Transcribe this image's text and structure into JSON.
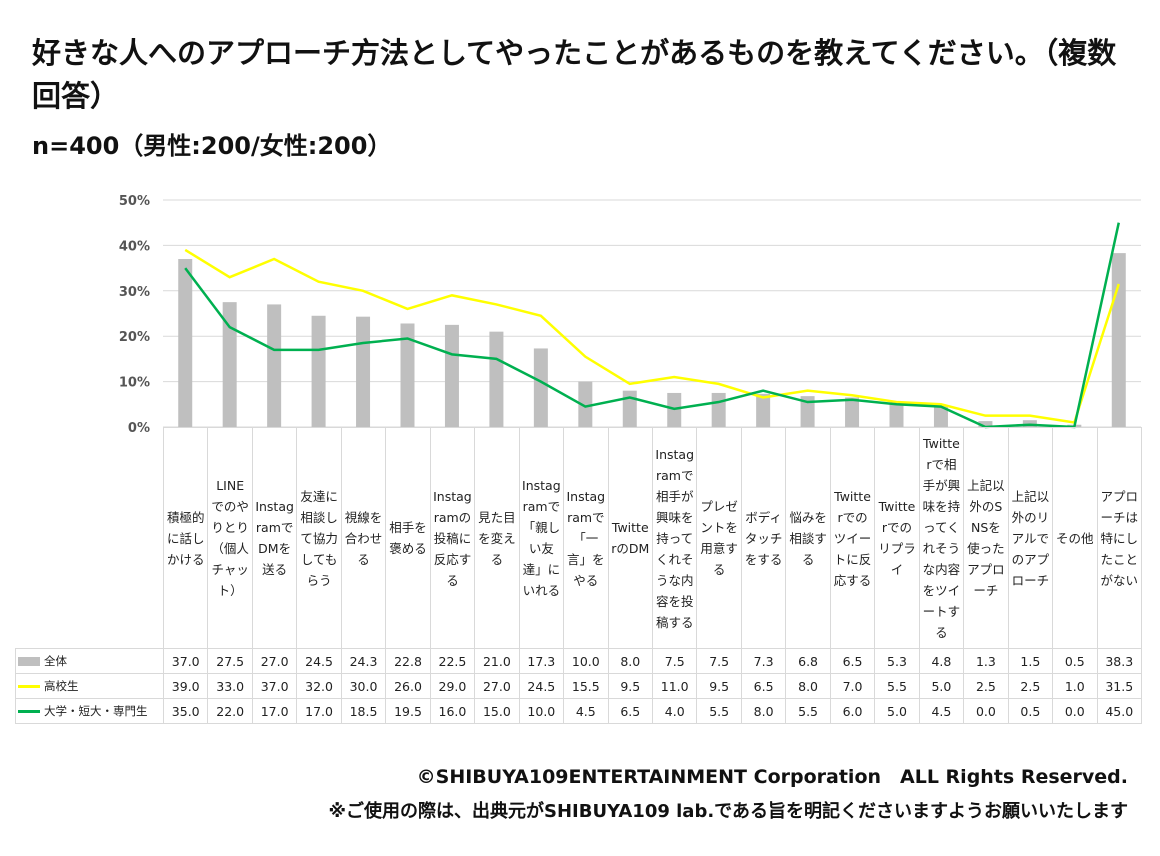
{
  "title": "好きな人へのアプローチ方法としてやったことがあるものを教えてください。（複数回答）",
  "subtitle": "n=400（男性:200/女性:200）",
  "footer": {
    "copyright": "©SHIBUYA109ENTERTAINMENT Corporation　ALL Rights Reserved.",
    "note": "※ご使用の際は、出典元がSHIBUYA109 lab.である旨を明記くださいますようお願いいたします"
  },
  "chart_data": {
    "type": "bar+line",
    "title": "好きな人へのアプローチ方法としてやったことがあるものを教えてください。（複数回答）",
    "ylim": [
      0,
      50
    ],
    "yticks": [
      "0%",
      "10%",
      "20%",
      "30%",
      "40%",
      "50%"
    ],
    "grid": true,
    "legend": "table-left",
    "categories": [
      "積極的に話しかける",
      "LINEでのやりとり（個人チャット）",
      "InstagramでDMを送る",
      "友達に相談して協力してもらう",
      "視線を合わせる",
      "相手を褒める",
      "Instagramの投稿に反応する",
      "見た目を変える",
      "Instagramで「親しい友達」にいれる",
      "Instagramで「一言」をやる",
      "TwitterのDM",
      "Instagramで相手が興味を持ってくれそうな内容を投稿する",
      "プレゼントを用意する",
      "ボディタッチをする",
      "悩みを相談する",
      "Twitterでのツイートに反応する",
      "Twitterでのリプライ",
      "Twitterで相手が興味を持ってくれそうな内容をツイートする",
      "上記以外のSNSを使ったアプローチ",
      "上記以外のリアルでのアプローチ",
      "その他",
      "アプローチは特にしたことがない"
    ],
    "series": [
      {
        "name": "全体",
        "type": "bar",
        "color": "#bfbfbf",
        "values": [
          37.0,
          27.5,
          27.0,
          24.5,
          24.3,
          22.8,
          22.5,
          21.0,
          17.3,
          10.0,
          8.0,
          7.5,
          7.5,
          7.3,
          6.8,
          6.5,
          5.3,
          4.8,
          1.3,
          1.5,
          0.5,
          38.3
        ]
      },
      {
        "name": "高校生",
        "type": "line",
        "color": "#ffff00",
        "values": [
          39.0,
          33.0,
          37.0,
          32.0,
          30.0,
          26.0,
          29.0,
          27.0,
          24.5,
          15.5,
          9.5,
          11.0,
          9.5,
          6.5,
          8.0,
          7.0,
          5.5,
          5.0,
          2.5,
          2.5,
          1.0,
          31.5
        ]
      },
      {
        "name": "大学・短大・専門生",
        "type": "line",
        "color": "#00b050",
        "values": [
          35.0,
          22.0,
          17.0,
          17.0,
          18.5,
          19.5,
          16.0,
          15.0,
          10.0,
          4.5,
          6.5,
          4.0,
          5.5,
          8.0,
          5.5,
          6.0,
          5.0,
          4.5,
          0.0,
          0.5,
          0.0,
          45.0
        ]
      }
    ]
  }
}
